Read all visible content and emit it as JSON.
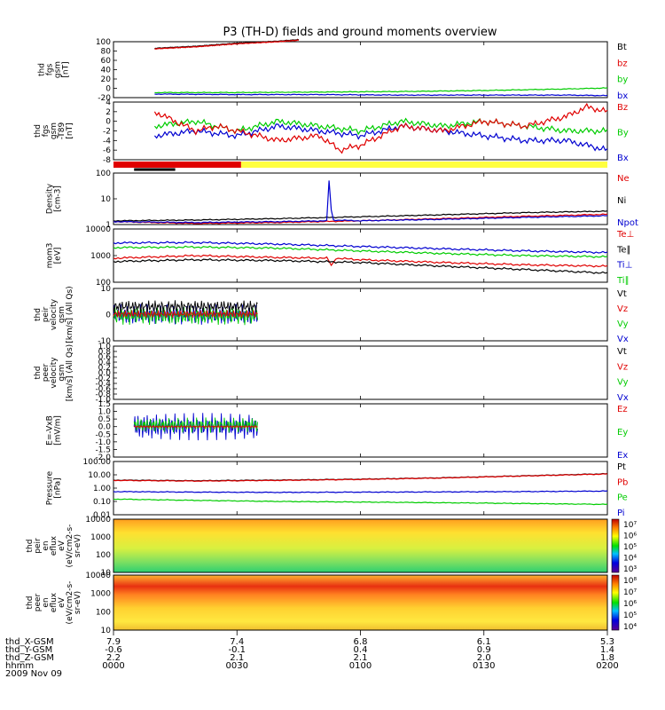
{
  "title": "P3 (TH-D) fields and ground moments overview",
  "colors": {
    "black": "#000000",
    "red": "#e00000",
    "green": "#00cc00",
    "blue": "#0000d0",
    "yellow": "#ffff40"
  },
  "chart_data": {
    "type": "line",
    "time_axis": {
      "label_rows": [
        {
          "label": "thd_X-GSM",
          "values": [
            "7.9",
            "7.4",
            "6.8",
            "6.1",
            "5.3"
          ]
        },
        {
          "label": "thd_Y-GSM",
          "values": [
            "-0.6",
            "-0.1",
            "0.4",
            "0.9",
            "1.4"
          ]
        },
        {
          "label": "thd_Z-GSM",
          "values": [
            "2.2",
            "2.1",
            "2.1",
            "2.0",
            "1.8"
          ]
        },
        {
          "label": "hhmm",
          "values": [
            "0000",
            "0030",
            "0100",
            "0130",
            "0200"
          ]
        }
      ],
      "date": "2009 Nov 09",
      "range": [
        "00:00",
        "02:00"
      ]
    },
    "panels": [
      {
        "id": "fgs",
        "ylabel": [
          "thd",
          "fgs",
          "gsm",
          "[nT]"
        ],
        "ylim": [
          -10,
          100
        ],
        "yticks": [
          "100",
          "80",
          "60",
          "40",
          "20",
          "0",
          "-20"
        ],
        "legend": [
          {
            "name": "Bt",
            "color": "#000000"
          },
          {
            "name": "bz",
            "color": "#e00000"
          },
          {
            "name": "by",
            "color": "#00cc00"
          },
          {
            "name": "bx",
            "color": "#0000d0"
          }
        ],
        "series": [
          {
            "name": "Bt",
            "color": "#000000",
            "x": [
              10,
              15,
              20,
              25,
              30,
              35,
              40,
              45
            ],
            "y": [
              87,
              89,
              91,
              94,
              97,
              99,
              101,
              104
            ]
          },
          {
            "name": "bz",
            "color": "#e00000",
            "x": [
              10,
              15,
              20,
              25,
              30,
              35,
              40,
              45
            ],
            "y": [
              86,
              88,
              90,
              93,
              96,
              98,
              100,
              103
            ]
          },
          {
            "name": "by",
            "color": "#00cc00",
            "x": [
              10,
              30,
              50,
              70,
              90,
              110,
              120
            ],
            "y": [
              0,
              0,
              1,
              2,
              4,
              7,
              9
            ]
          },
          {
            "name": "bx",
            "color": "#0000d0",
            "x": [
              10,
              30,
              50,
              70,
              90,
              110,
              120
            ],
            "y": [
              -3,
              -4,
              -4,
              -5,
              -5,
              -5,
              -6
            ]
          }
        ]
      },
      {
        "id": "fgs-t89",
        "ylabel": [
          "thd",
          "fgs",
          "gsm",
          "-T89",
          "[nT]"
        ],
        "ylim": [
          -7,
          5
        ],
        "yticks": [
          "4",
          "2",
          "0",
          "-2",
          "-4",
          "-6",
          "-8"
        ],
        "legend": [
          {
            "name": "Bz",
            "color": "#e00000"
          },
          {
            "name": "By",
            "color": "#00cc00"
          },
          {
            "name": "Bx",
            "color": "#0000d0"
          }
        ],
        "series": [
          {
            "name": "By",
            "color": "#00cc00",
            "x": [
              10,
              20,
              30,
              40,
              50,
              60,
              70,
              80,
              90,
              100,
              110,
              120
            ],
            "y": [
              0,
              1,
              -1,
              1,
              0,
              -1,
              1,
              0,
              1,
              0,
              -1,
              -1
            ]
          },
          {
            "name": "Bx",
            "color": "#0000d0",
            "x": [
              10,
              20,
              30,
              40,
              50,
              60,
              70,
              80,
              90,
              100,
              110,
              120
            ],
            "y": [
              -2,
              -1,
              -2,
              0,
              -1,
              -2,
              0,
              -1,
              -2,
              -3,
              -3,
              -5
            ]
          },
          {
            "name": "Bz",
            "color": "#e00000",
            "x": [
              10,
              20,
              25,
              30,
              40,
              50,
              55,
              60,
              70,
              80,
              90,
              100,
              110,
              115,
              120
            ],
            "y": [
              3,
              -1,
              0,
              -1,
              -3,
              -2,
              -5,
              -4,
              0,
              -1,
              1,
              0,
              2,
              4,
              3
            ]
          }
        ]
      },
      {
        "id": "mode-bar",
        "segments": [
          {
            "color": "#e00000",
            "x0": 0,
            "x1": 31
          },
          {
            "color": "#ffff40",
            "x0": 31,
            "x1": 120
          },
          {
            "color": "#000000",
            "x0": 5,
            "x1": 15
          }
        ]
      },
      {
        "id": "density",
        "ylabel": [
          "Density",
          "[cm-3]"
        ],
        "ylim": [
          1,
          100
        ],
        "scale": "log",
        "yticks": [
          "100",
          "10",
          "1"
        ],
        "legend": [
          {
            "name": "Ne",
            "color": "#e00000"
          },
          {
            "name": "Ni",
            "color": "#000000"
          },
          {
            "name": "Npot",
            "color": "#0000d0"
          }
        ],
        "series": [
          {
            "name": "Ni",
            "color": "#000000",
            "x": [
              0,
              20,
              40,
              60,
              80,
              100,
              120
            ],
            "y": [
              1.4,
              1.5,
              1.7,
              2.0,
              2.4,
              2.9,
              3.3
            ]
          },
          {
            "name": "Ne",
            "color": "#e00000",
            "x": [
              0,
              20,
              40,
              60,
              80,
              100,
              120
            ],
            "y": [
              1.3,
              1.1,
              1.2,
              1.4,
              1.7,
              2.1,
              2.5
            ]
          },
          {
            "name": "Npot",
            "color": "#0000d0",
            "x": [
              0,
              20,
              40,
              52,
              52.5,
              53,
              60,
              80,
              100,
              120
            ],
            "y": [
              1.3,
              1.2,
              1.3,
              1.4,
              200,
              1.5,
              1.4,
              1.6,
              1.9,
              2.2
            ]
          }
        ]
      },
      {
        "id": "temp",
        "ylabel": [
          "mom3",
          "[eV]"
        ],
        "ylim": [
          100,
          10000
        ],
        "scale": "log",
        "yticks": [
          "10000",
          "1000",
          "100"
        ],
        "legend": [
          {
            "name": "Te⊥",
            "color": "#e00000"
          },
          {
            "name": "Te∥",
            "color": "#000000"
          },
          {
            "name": "Ti⊥",
            "color": "#0000d0"
          },
          {
            "name": "Ti∥",
            "color": "#00cc00"
          }
        ],
        "series": [
          {
            "name": "Ti⊥",
            "color": "#0000d0",
            "x": [
              0,
              20,
              40,
              60,
              80,
              100,
              120
            ],
            "y": [
              3000,
              3100,
              2700,
              2200,
              1800,
              1500,
              1300
            ]
          },
          {
            "name": "Ti∥",
            "color": "#00cc00",
            "x": [
              0,
              20,
              40,
              60,
              80,
              100,
              120
            ],
            "y": [
              2000,
              2100,
              1900,
              1500,
              1200,
              1000,
              900
            ]
          },
          {
            "name": "Te⊥",
            "color": "#e00000",
            "x": [
              0,
              20,
              40,
              52,
              53,
              54,
              60,
              80,
              100,
              120
            ],
            "y": [
              800,
              1000,
              850,
              800,
              400,
              800,
              700,
              550,
              450,
              400
            ]
          },
          {
            "name": "Te∥",
            "color": "#000000",
            "x": [
              0,
              20,
              40,
              60,
              80,
              100,
              120
            ],
            "y": [
              600,
              700,
              650,
              550,
              400,
              300,
              220
            ]
          }
        ]
      },
      {
        "id": "peir-velocity",
        "ylabel": [
          "thd",
          "peir",
          "velocity",
          "gsm",
          "[km/s] (All Qs)"
        ],
        "ylim": [
          -20,
          20
        ],
        "yticks": [
          "10",
          "0",
          "-10"
        ],
        "legend": [
          {
            "name": "Vt",
            "color": "#000000"
          },
          {
            "name": "Vz",
            "color": "#e00000"
          },
          {
            "name": "Vy",
            "color": "#00cc00"
          },
          {
            "name": "Vx",
            "color": "#0000d0"
          }
        ],
        "x_extent": [
          0,
          35
        ]
      },
      {
        "id": "peer-velocity",
        "ylabel": [
          "thd",
          "peer",
          "velocity",
          "gsm",
          "[km/s] (All Qs)"
        ],
        "ylim": [
          -1,
          1
        ],
        "yticks": [
          "1.0",
          "0.8",
          "0.6",
          "0.4",
          "0.2",
          "0.0",
          "-0.2",
          "-0.4",
          "-0.6",
          "-0.8",
          "-1.0"
        ],
        "legend": [
          {
            "name": "Vt",
            "color": "#000000"
          },
          {
            "name": "Vz",
            "color": "#e00000"
          },
          {
            "name": "Vy",
            "color": "#00cc00"
          },
          {
            "name": "Vx",
            "color": "#0000d0"
          }
        ]
      },
      {
        "id": "efield",
        "ylabel": [
          "E=-VxB",
          "[mV/m]"
        ],
        "ylim": [
          -2,
          1.5
        ],
        "yticks": [
          "1.5",
          "1.0",
          "0.5",
          "0.0",
          "-0.5",
          "-1.0",
          "-1.5",
          "-2.0"
        ],
        "legend": [
          {
            "name": "Ez",
            "color": "#e00000"
          },
          {
            "name": "Ey",
            "color": "#00cc00"
          },
          {
            "name": "Ex",
            "color": "#0000d0"
          }
        ],
        "x_extent": [
          5,
          35
        ]
      },
      {
        "id": "pressure",
        "ylabel": [
          "Pressure",
          "[nPa]"
        ],
        "ylim": [
          0.01,
          100
        ],
        "scale": "log",
        "yticks": [
          "100.00",
          "10.00",
          "1.00",
          "0.10",
          "0.01"
        ],
        "legend": [
          {
            "name": "Pt",
            "color": "#000000"
          },
          {
            "name": "Pb",
            "color": "#e00000"
          },
          {
            "name": "Pe",
            "color": "#00cc00"
          },
          {
            "name": "Pi",
            "color": "#0000d0"
          }
        ],
        "series": [
          {
            "name": "Pt",
            "color": "#000000",
            "x": [
              0,
              20,
              40,
              60,
              80,
              100,
              120
            ],
            "y": [
              4.0,
              3.6,
              4.0,
              4.7,
              6.0,
              8.5,
              12
            ]
          },
          {
            "name": "Pb",
            "color": "#e00000",
            "x": [
              0,
              20,
              40,
              60,
              80,
              100,
              120
            ],
            "y": [
              3.8,
              3.4,
              3.8,
              4.5,
              5.8,
              8.2,
              11.5
            ]
          },
          {
            "name": "Pi",
            "color": "#0000d0",
            "x": [
              0,
              20,
              40,
              60,
              80,
              100,
              120
            ],
            "y": [
              0.55,
              0.5,
              0.48,
              0.5,
              0.52,
              0.55,
              0.6
            ]
          },
          {
            "name": "Pe",
            "color": "#00cc00",
            "x": [
              0,
              20,
              40,
              60,
              80,
              100,
              120
            ],
            "y": [
              0.15,
              0.12,
              0.1,
              0.09,
              0.08,
              0.07,
              0.06
            ]
          }
        ]
      },
      {
        "id": "peir-spectrogram",
        "ylabel": [
          "thd",
          "peir",
          "en",
          "eflux",
          "eV",
          "(eV/cm2-s-",
          "sr-eV)"
        ],
        "yticks": [
          "10000",
          "1000",
          "100",
          "10"
        ],
        "colorbar_ticks": [
          "10⁷",
          "10⁶",
          "10⁵",
          "10⁴",
          "10³"
        ]
      },
      {
        "id": "peer-spectrogram",
        "ylabel": [
          "thd",
          "peer",
          "en",
          "eflux",
          "eV",
          "(eV/cm2-s-",
          "sr-eV)"
        ],
        "yticks": [
          "10000",
          "1000",
          "100",
          "10"
        ],
        "colorbar_ticks": [
          "10⁸",
          "10⁷",
          "10⁶",
          "10⁵",
          "10⁴"
        ]
      }
    ]
  }
}
